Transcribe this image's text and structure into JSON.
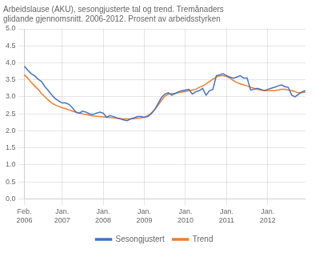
{
  "chart_data": {
    "type": "line",
    "title": "Arbeidslause (AKU), sesongjusterte tal og trend. Tremånaders\nglidande gjennomsnitt. 2006-2012. Prosent av arbeidsstyrken",
    "categories": [
      "Feb.\n2006",
      null,
      null,
      null,
      null,
      null,
      null,
      null,
      null,
      null,
      null,
      "Jan.\n2007",
      null,
      null,
      null,
      null,
      null,
      null,
      null,
      null,
      null,
      null,
      null,
      "Jan.\n2008",
      null,
      null,
      null,
      null,
      null,
      null,
      null,
      null,
      null,
      null,
      null,
      "Jan.\n2009",
      null,
      null,
      null,
      null,
      null,
      null,
      null,
      null,
      null,
      null,
      null,
      "Jan.\n2010",
      null,
      null,
      null,
      null,
      null,
      null,
      null,
      null,
      null,
      null,
      null,
      "Jan.\n2011",
      null,
      null,
      null,
      null,
      null,
      null,
      null,
      null,
      null,
      null,
      null,
      "Jan.\n2012",
      null,
      null,
      null,
      null,
      null,
      null,
      null,
      null,
      null,
      null,
      null
    ],
    "series": [
      {
        "name": "Sesongjustert",
        "color": "#4472C4",
        "values": [
          3.9,
          3.78,
          3.68,
          3.62,
          3.52,
          3.45,
          3.3,
          3.18,
          3.05,
          2.95,
          2.88,
          2.82,
          2.82,
          2.78,
          2.68,
          2.55,
          2.52,
          2.58,
          2.55,
          2.5,
          2.48,
          2.52,
          2.55,
          2.52,
          2.4,
          2.45,
          2.42,
          2.38,
          2.35,
          2.32,
          2.3,
          2.35,
          2.38,
          2.42,
          2.42,
          2.4,
          2.42,
          2.5,
          2.62,
          2.8,
          2.98,
          3.08,
          3.12,
          3.05,
          3.1,
          3.15,
          3.18,
          3.2,
          3.22,
          3.08,
          3.15,
          3.18,
          3.25,
          3.05,
          3.18,
          3.22,
          3.62,
          3.65,
          3.68,
          3.62,
          3.58,
          3.55,
          3.58,
          3.62,
          3.55,
          3.55,
          3.2,
          3.22,
          3.25,
          3.22,
          3.18,
          3.22,
          3.25,
          3.28,
          3.32,
          3.35,
          3.3,
          3.28,
          3.05,
          3.0,
          3.08,
          3.15,
          3.18
        ]
      },
      {
        "name": "Trend",
        "color": "#ED7D31",
        "values": [
          3.65,
          3.55,
          3.42,
          3.32,
          3.22,
          3.1,
          3.0,
          2.9,
          2.82,
          2.76,
          2.72,
          2.68,
          2.65,
          2.62,
          2.58,
          2.55,
          2.52,
          2.5,
          2.48,
          2.46,
          2.44,
          2.43,
          2.42,
          2.41,
          2.4,
          2.39,
          2.38,
          2.37,
          2.36,
          2.35,
          2.35,
          2.35,
          2.36,
          2.37,
          2.38,
          2.4,
          2.45,
          2.52,
          2.62,
          2.75,
          2.9,
          3.02,
          3.08,
          3.1,
          3.1,
          3.12,
          3.14,
          3.16,
          3.18,
          3.2,
          3.22,
          3.28,
          3.32,
          3.38,
          3.45,
          3.52,
          3.58,
          3.62,
          3.62,
          3.6,
          3.55,
          3.48,
          3.42,
          3.38,
          3.35,
          3.32,
          3.28,
          3.25,
          3.22,
          3.2,
          3.18,
          3.18,
          3.18,
          3.18,
          3.2,
          3.22,
          3.22,
          3.2,
          3.18,
          3.15,
          3.12,
          3.12,
          3.14
        ]
      }
    ],
    "ylim": [
      0.0,
      5.0
    ],
    "yticks": [
      {
        "value": 0.0,
        "label": "0.0"
      },
      0.5,
      {
        "value": 1.0,
        "label": "1.0"
      },
      1.5,
      {
        "value": 2.0,
        "label": "2.0"
      },
      2.5,
      {
        "value": 3.0,
        "label": "3.0"
      },
      3.5,
      {
        "value": 4.0,
        "label": "4.0"
      },
      4.5,
      {
        "value": 5.0,
        "label": "5.0"
      }
    ],
    "grid": true,
    "legend": "bottom"
  }
}
